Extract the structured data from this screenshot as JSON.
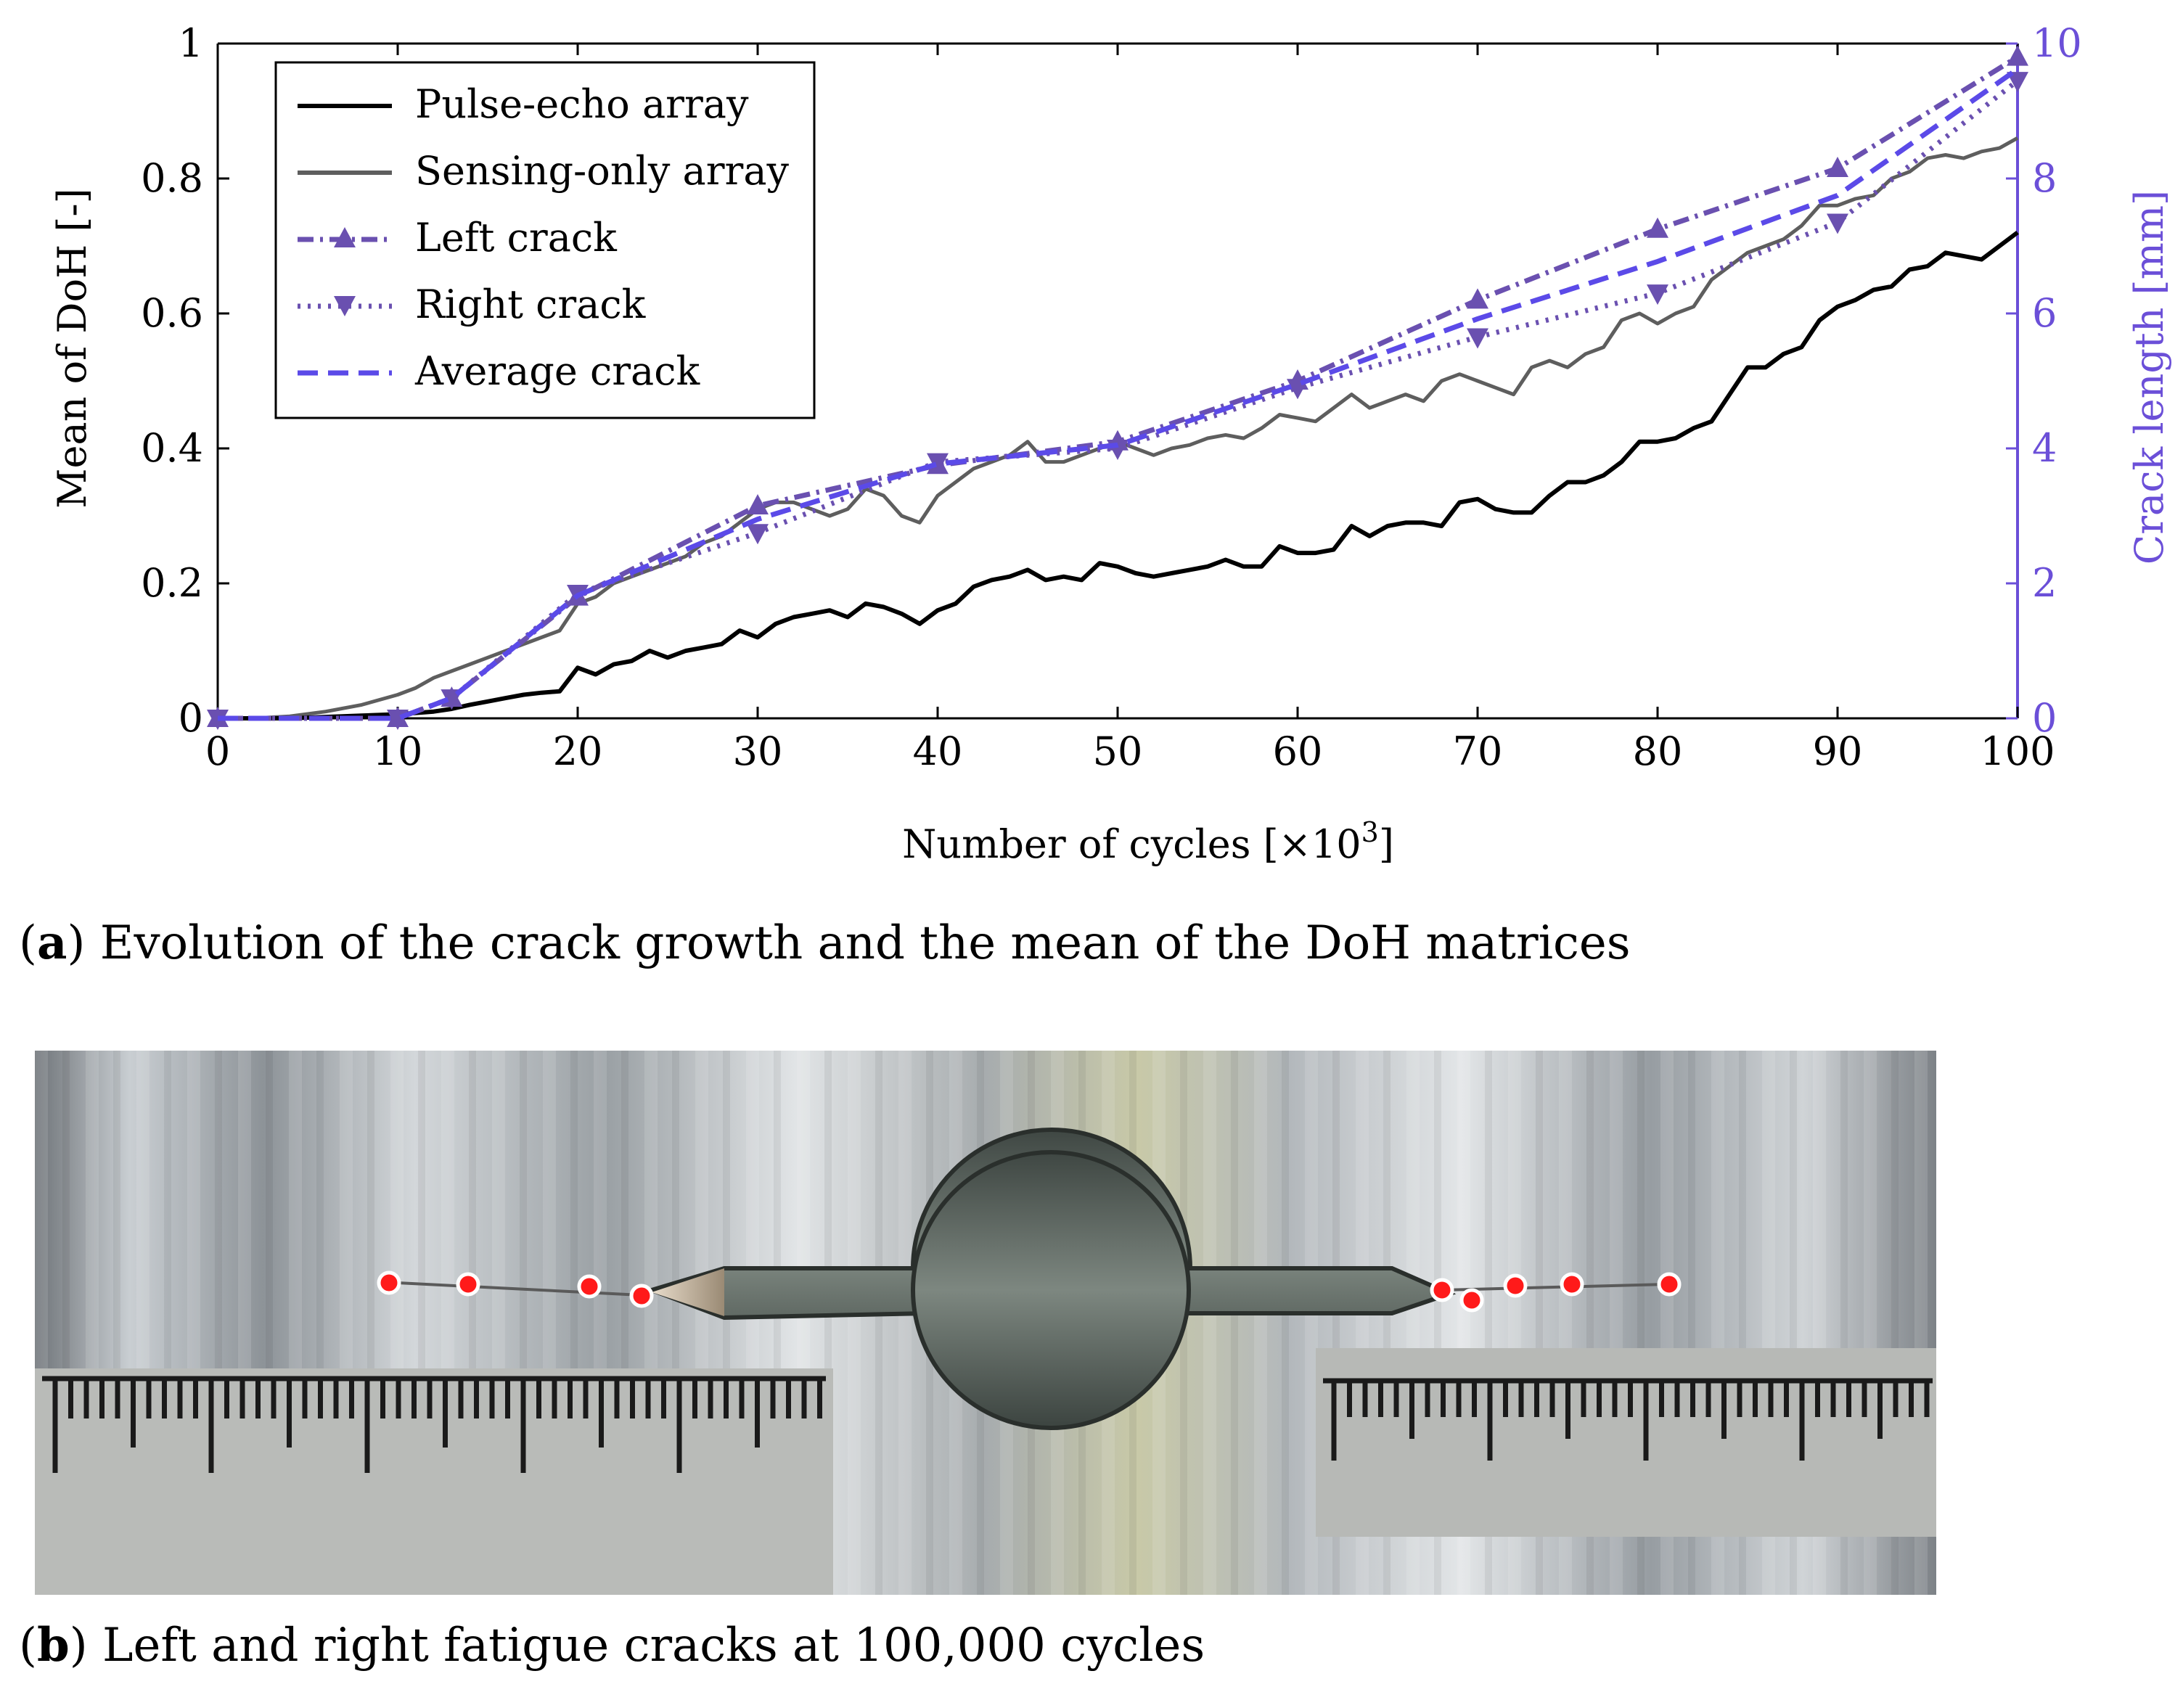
{
  "chart_data": {
    "type": "line",
    "xlabel": "Number of cycles [×10",
    "xlabel_sup": "3",
    "xlabel_end": "]",
    "ylabel_left": "Mean of DoH [-]",
    "ylabel_right": "Crack length [mm]",
    "xlim": [
      0,
      100
    ],
    "ylim_left": [
      0,
      1
    ],
    "ylim_right": [
      0,
      10
    ],
    "xticks": [
      "0",
      "10",
      "20",
      "30",
      "40",
      "50",
      "60",
      "70",
      "80",
      "90",
      "100"
    ],
    "yticks_left": [
      "0",
      "0.2",
      "0.4",
      "0.6",
      "0.8",
      "1"
    ],
    "yticks_right": [
      "0",
      "2",
      "4",
      "6",
      "8",
      "10"
    ],
    "grid": false,
    "legend_position": "top-left",
    "colors": {
      "pulse": "#000000",
      "sensing": "#5e5e5e",
      "left": "#6a50b0",
      "right": "#6a50b0",
      "average": "#5b4ae8",
      "right_axis": "#6b4fd8"
    },
    "series": [
      {
        "name": "Pulse-echo array",
        "axis": "left",
        "style": "solid",
        "x": [
          0,
          2,
          4,
          6,
          8,
          10,
          11,
          12,
          13,
          14,
          15,
          16,
          17,
          18,
          19,
          20,
          21,
          22,
          23,
          24,
          25,
          26,
          27,
          28,
          29,
          30,
          31,
          32,
          33,
          34,
          35,
          36,
          37,
          38,
          39,
          40,
          41,
          42,
          43,
          44,
          45,
          46,
          47,
          48,
          49,
          50,
          51,
          52,
          53,
          54,
          55,
          56,
          57,
          58,
          59,
          60,
          61,
          62,
          63,
          64,
          65,
          66,
          67,
          68,
          69,
          70,
          71,
          72,
          73,
          74,
          75,
          76,
          77,
          78,
          79,
          80,
          81,
          82,
          83,
          84,
          85,
          86,
          87,
          88,
          89,
          90,
          91,
          92,
          93,
          94,
          95,
          96,
          97,
          98,
          99,
          100
        ],
        "y": [
          0,
          0,
          0,
          0.002,
          0.004,
          0.006,
          0.008,
          0.01,
          0.014,
          0.02,
          0.025,
          0.03,
          0.035,
          0.038,
          0.04,
          0.075,
          0.065,
          0.08,
          0.085,
          0.1,
          0.09,
          0.1,
          0.105,
          0.11,
          0.13,
          0.12,
          0.14,
          0.15,
          0.155,
          0.16,
          0.15,
          0.17,
          0.165,
          0.155,
          0.14,
          0.16,
          0.17,
          0.195,
          0.205,
          0.21,
          0.22,
          0.205,
          0.21,
          0.205,
          0.23,
          0.225,
          0.215,
          0.21,
          0.215,
          0.22,
          0.225,
          0.235,
          0.225,
          0.225,
          0.255,
          0.245,
          0.245,
          0.25,
          0.285,
          0.27,
          0.285,
          0.29,
          0.29,
          0.285,
          0.32,
          0.325,
          0.31,
          0.305,
          0.305,
          0.33,
          0.35,
          0.35,
          0.36,
          0.38,
          0.41,
          0.41,
          0.415,
          0.43,
          0.44,
          0.48,
          0.52,
          0.52,
          0.54,
          0.55,
          0.59,
          0.61,
          0.62,
          0.635,
          0.64,
          0.665,
          0.67,
          0.69,
          0.685,
          0.68,
          0.7,
          0.72
        ]
      },
      {
        "name": "Sensing-only array",
        "axis": "left",
        "style": "solid",
        "x": [
          0,
          2,
          4,
          6,
          8,
          10,
          11,
          12,
          13,
          14,
          15,
          16,
          17,
          18,
          19,
          20,
          21,
          22,
          23,
          24,
          25,
          26,
          27,
          28,
          29,
          30,
          31,
          32,
          33,
          34,
          35,
          36,
          37,
          38,
          39,
          40,
          41,
          42,
          43,
          44,
          45,
          46,
          47,
          48,
          49,
          50,
          51,
          52,
          53,
          54,
          55,
          56,
          57,
          58,
          59,
          60,
          61,
          62,
          63,
          64,
          65,
          66,
          67,
          68,
          69,
          70,
          71,
          72,
          73,
          74,
          75,
          76,
          77,
          78,
          79,
          80,
          81,
          82,
          83,
          84,
          85,
          86,
          87,
          88,
          89,
          90,
          91,
          92,
          93,
          94,
          95,
          96,
          97,
          98,
          99,
          100
        ],
        "y": [
          0,
          0,
          0.003,
          0.01,
          0.02,
          0.035,
          0.045,
          0.06,
          0.07,
          0.08,
          0.09,
          0.1,
          0.11,
          0.12,
          0.13,
          0.17,
          0.18,
          0.2,
          0.21,
          0.22,
          0.23,
          0.24,
          0.26,
          0.27,
          0.29,
          0.31,
          0.32,
          0.32,
          0.31,
          0.3,
          0.31,
          0.34,
          0.33,
          0.3,
          0.29,
          0.33,
          0.35,
          0.37,
          0.38,
          0.39,
          0.41,
          0.38,
          0.38,
          0.39,
          0.4,
          0.41,
          0.4,
          0.39,
          0.4,
          0.405,
          0.415,
          0.42,
          0.415,
          0.43,
          0.45,
          0.445,
          0.44,
          0.46,
          0.48,
          0.46,
          0.47,
          0.48,
          0.47,
          0.5,
          0.51,
          0.5,
          0.49,
          0.48,
          0.52,
          0.53,
          0.52,
          0.54,
          0.55,
          0.59,
          0.6,
          0.585,
          0.6,
          0.61,
          0.65,
          0.67,
          0.69,
          0.7,
          0.71,
          0.73,
          0.76,
          0.76,
          0.77,
          0.775,
          0.8,
          0.81,
          0.83,
          0.835,
          0.83,
          0.84,
          0.845,
          0.86
        ]
      },
      {
        "name": "Left crack",
        "axis": "right",
        "style": "dashdot",
        "marker": "triangle-up",
        "x": [
          0,
          10,
          13,
          20,
          30,
          40,
          50,
          60,
          70,
          80,
          90,
          100
        ],
        "y": [
          0,
          0,
          0.3,
          1.8,
          3.15,
          3.75,
          4.1,
          5.0,
          6.2,
          7.25,
          8.15,
          9.8
        ]
      },
      {
        "name": "Right crack",
        "axis": "right",
        "style": "dotted",
        "marker": "triangle-down",
        "x": [
          0,
          10,
          13,
          20,
          30,
          40,
          50,
          60,
          70,
          80,
          90,
          100
        ],
        "y": [
          0,
          0,
          0.3,
          1.85,
          2.75,
          3.8,
          4.0,
          4.9,
          5.65,
          6.3,
          7.35,
          9.45
        ]
      },
      {
        "name": "Average crack",
        "axis": "right",
        "style": "dashed",
        "x": [
          0,
          10,
          13,
          20,
          30,
          40,
          50,
          60,
          70,
          80,
          90,
          100
        ],
        "y": [
          0,
          0,
          0.3,
          1.82,
          2.95,
          3.77,
          4.05,
          4.95,
          5.92,
          6.77,
          7.75,
          9.62
        ]
      }
    ]
  },
  "captions": {
    "a_label": "a",
    "a_text": " Evolution of the crack growth and the mean of the DoH matrices",
    "b_label": "b",
    "b_text": " Left and right fatigue cracks at 100,000 cycles"
  },
  "photo": {
    "description_icon": "specimen-photo",
    "marker_color": "#ff1a1a"
  }
}
